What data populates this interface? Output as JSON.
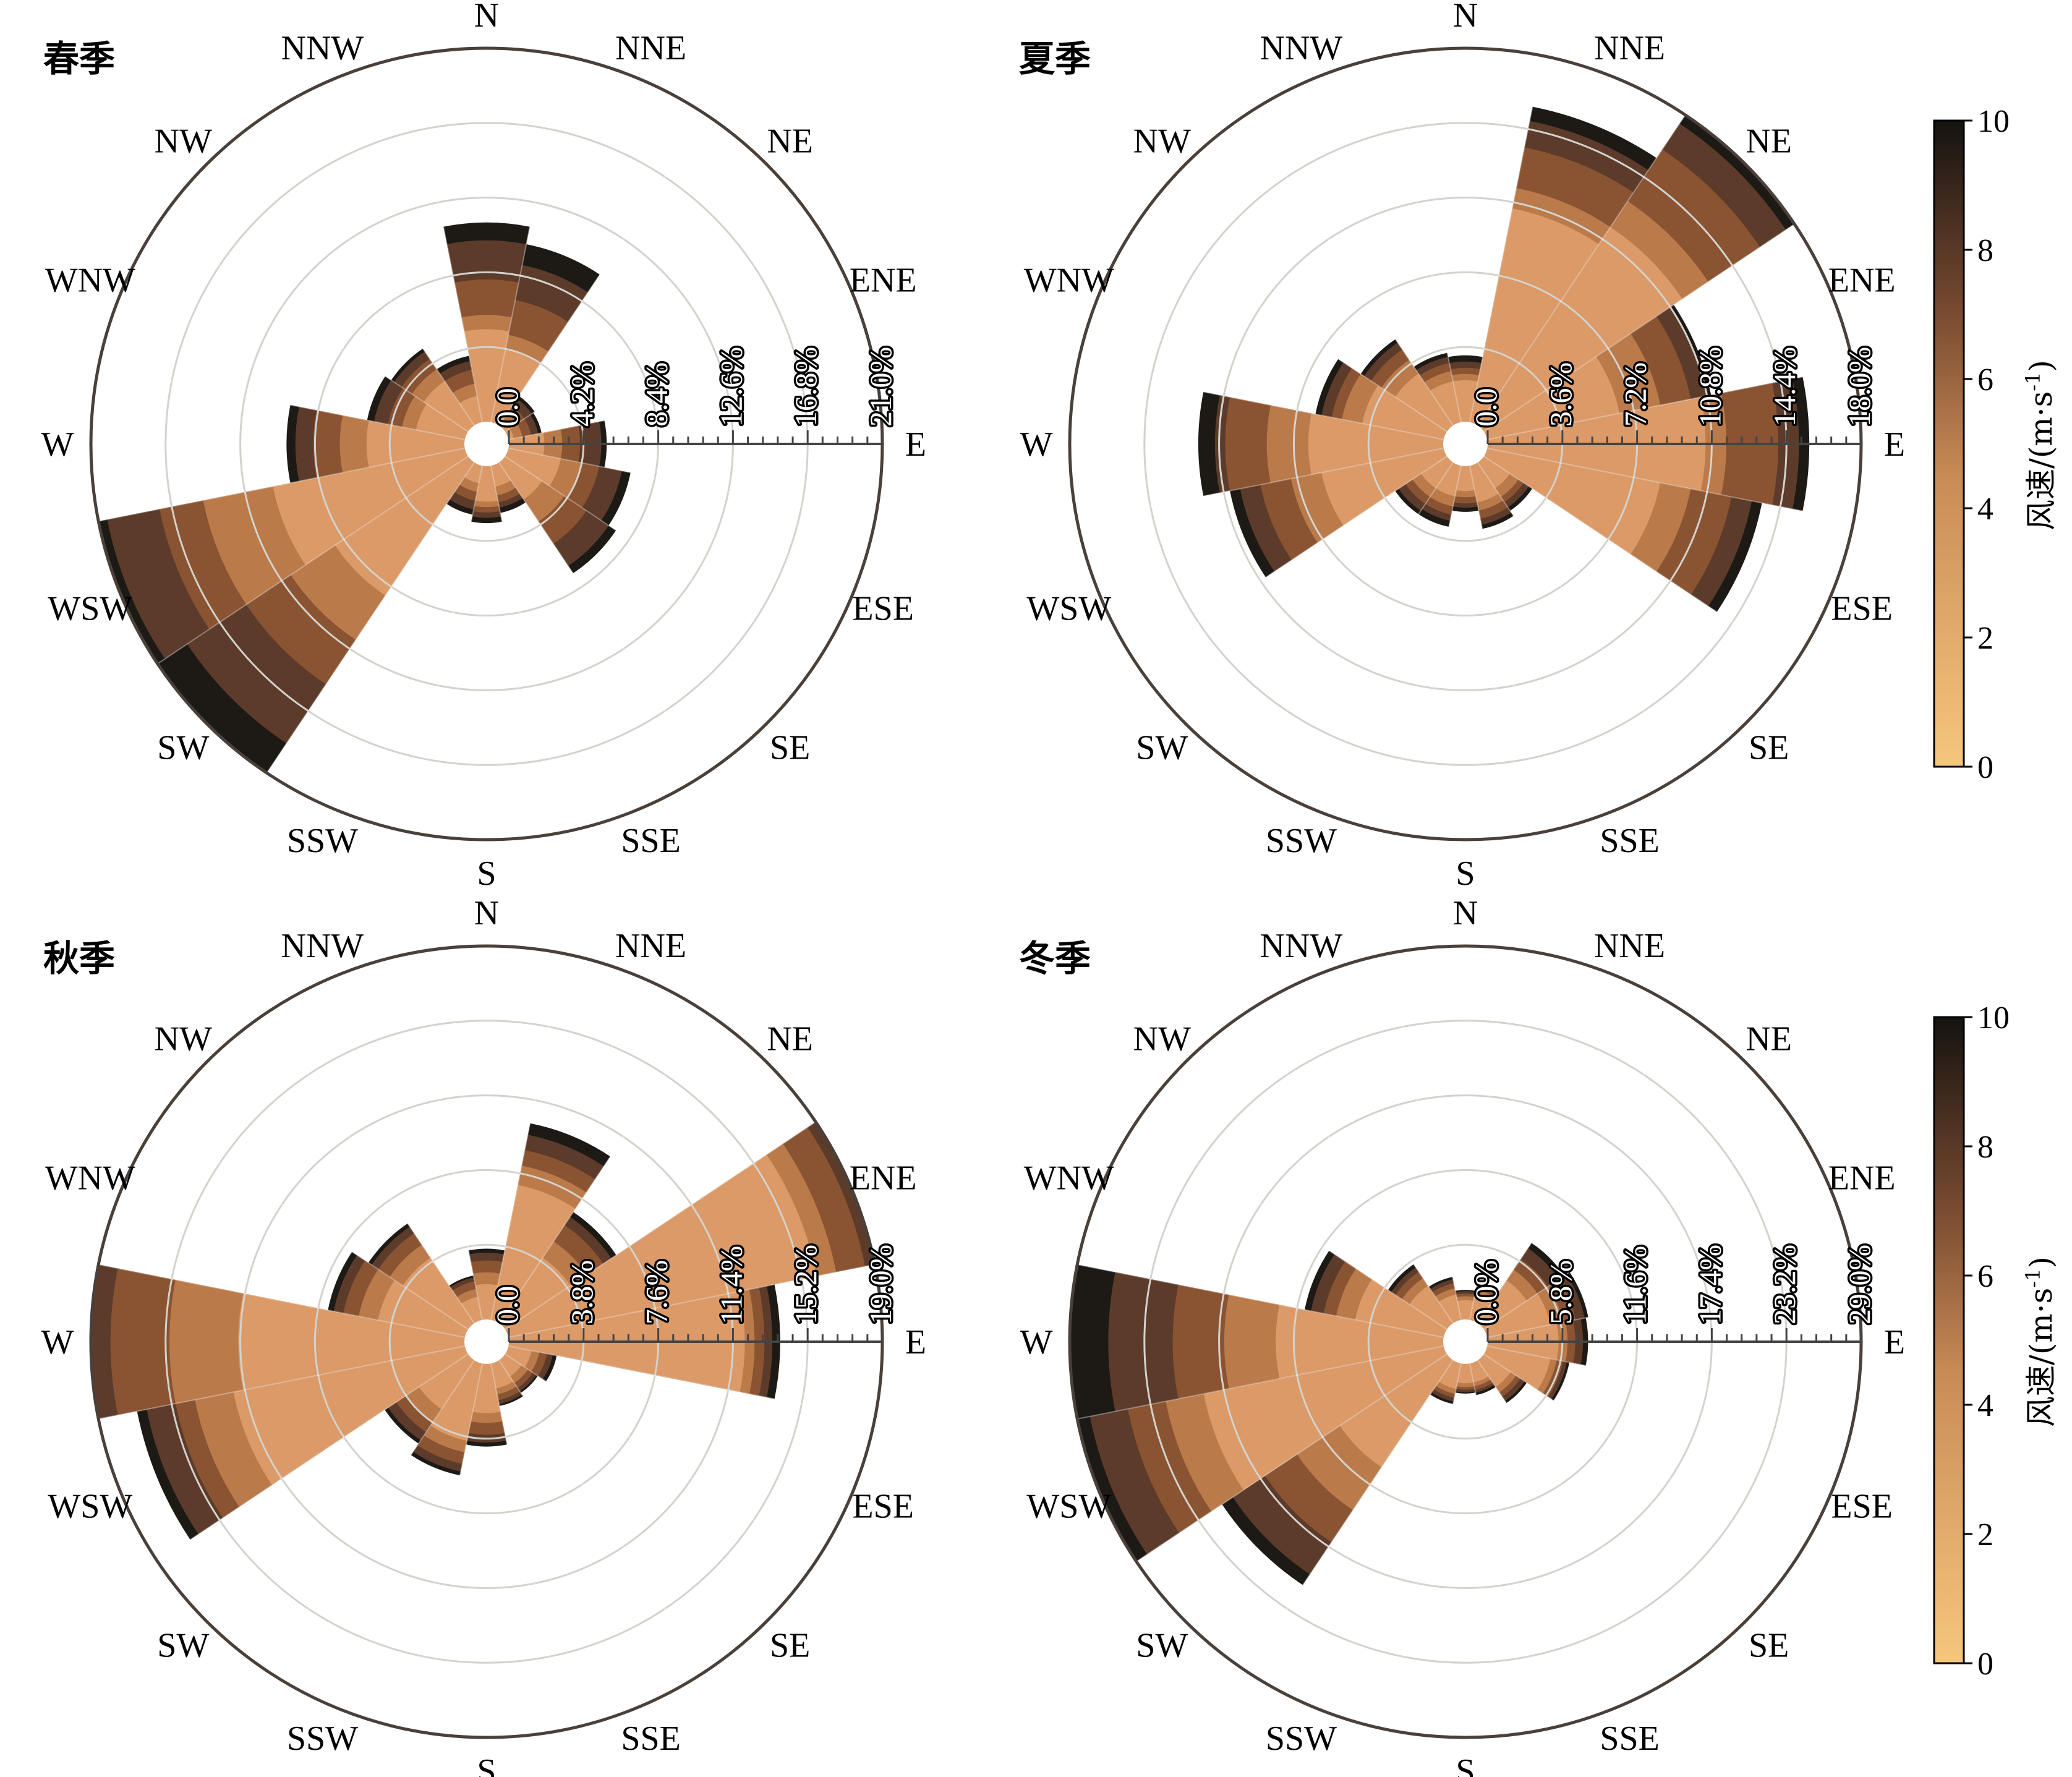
{
  "chart_data": [
    {
      "type": "wind-rose",
      "title": "春季",
      "directions": [
        "N",
        "NNE",
        "NE",
        "ENE",
        "E",
        "ESE",
        "SE",
        "SSE",
        "S",
        "SSW",
        "SW",
        "WSW",
        "W",
        "WNW",
        "NW",
        "NNW"
      ],
      "radial_ticks": [
        "0.0",
        "4.2%",
        "8.4%",
        "12.6%",
        "16.8%",
        "21.0%"
      ],
      "rmax": 21.0,
      "speed_bins": [
        2,
        4,
        6,
        8,
        10
      ],
      "cumulative_frequency": [
        [
          5.2,
          6.0,
          8.0,
          10.2,
          11.2
        ],
        [
          4.2,
          5.0,
          7.0,
          9.0,
          10.2
        ],
        [
          0.3,
          0.8,
          1.3,
          1.8,
          2.0
        ],
        [
          0.3,
          0.8,
          1.3,
          1.7,
          1.9
        ],
        [
          2.0,
          3.0,
          4.0,
          5.2,
          5.5
        ],
        [
          3.0,
          4.2,
          5.2,
          6.5,
          7.0
        ],
        [
          2.5,
          4.0,
          5.5,
          7.0,
          7.5
        ],
        [
          1.2,
          1.7,
          2.1,
          2.4,
          2.7
        ],
        [
          2.0,
          2.3,
          2.6,
          2.9,
          3.2
        ],
        [
          1.0,
          1.5,
          2.0,
          2.5,
          2.8
        ],
        [
          9.0,
          12.0,
          15.0,
          19.0,
          21.0
        ],
        [
          11.0,
          15.0,
          17.5,
          20.5,
          21.5
        ],
        [
          5.5,
          7.0,
          8.5,
          9.5,
          10.0
        ],
        [
          2.8,
          3.6,
          4.4,
          5.2,
          5.6
        ],
        [
          3.0,
          3.8,
          4.5,
          5.0,
          5.2
        ],
        [
          1.5,
          2.2,
          3.0,
          3.5,
          3.8
        ]
      ]
    },
    {
      "type": "wind-rose",
      "title": "夏季",
      "directions": [
        "N",
        "NNE",
        "NE",
        "ENE",
        "E",
        "ESE",
        "SE",
        "SSE",
        "S",
        "SSW",
        "SW",
        "WSW",
        "W",
        "WNW",
        "NW",
        "NNW"
      ],
      "radial_ticks": [
        "0.0",
        "3.6%",
        "7.2%",
        "10.8%",
        "14.4%",
        "18.0%"
      ],
      "rmax": 18.0,
      "speed_bins": [
        2,
        4,
        6,
        8,
        10
      ],
      "cumulative_frequency": [
        [
          2.0,
          2.3,
          2.6,
          2.9,
          3.2
        ],
        [
          10.5,
          11.5,
          13.5,
          14.8,
          15.5
        ],
        [
          11.5,
          13.0,
          16.0,
          17.5,
          18.5
        ],
        [
          6.5,
          8.5,
          10.0,
          10.8,
          11.0
        ],
        [
          10.5,
          11.5,
          14.0,
          15.0,
          15.5
        ],
        [
          8.5,
          10.0,
          12.0,
          13.0,
          13.5
        ],
        [
          1.5,
          2.0,
          2.3,
          2.6,
          2.8
        ],
        [
          1.8,
          2.2,
          2.6,
          2.9,
          3.1
        ],
        [
          1.2,
          1.5,
          1.8,
          2.0,
          2.2
        ],
        [
          1.5,
          2.0,
          2.4,
          2.7,
          3.0
        ],
        [
          1.5,
          2.0,
          2.4,
          2.8,
          3.0
        ],
        [
          6.0,
          7.5,
          9.0,
          10.0,
          10.5
        ],
        [
          6.5,
          8.5,
          10.5,
          11.0,
          11.8
        ],
        [
          4.0,
          5.0,
          5.5,
          6.0,
          6.3
        ],
        [
          3.0,
          3.8,
          4.4,
          4.8,
          5.0
        ],
        [
          2.0,
          2.5,
          2.9,
          3.2,
          3.4
        ]
      ]
    },
    {
      "type": "wind-rose",
      "title": "秋季",
      "directions": [
        "N",
        "NNE",
        "NE",
        "ENE",
        "E",
        "ESE",
        "SE",
        "SSE",
        "S",
        "SSW",
        "SW",
        "WSW",
        "W",
        "WNW",
        "NW",
        "NNW"
      ],
      "radial_ticks": [
        "0.0",
        "3.8%",
        "7.6%",
        "11.4%",
        "15.2%",
        "19.0%"
      ],
      "rmax": 19.0,
      "speed_bins": [
        2,
        4,
        6,
        8,
        10
      ],
      "cumulative_frequency": [
        [
          1.8,
          2.4,
          3.0,
          3.4,
          3.6
        ],
        [
          7.0,
          8.0,
          8.8,
          9.6,
          10.2
        ],
        [
          4.0,
          5.0,
          6.0,
          6.5,
          6.8
        ],
        [
          16.0,
          17.0,
          18.5,
          19.5,
          20.0
        ],
        [
          12.0,
          12.5,
          13.0,
          13.4,
          13.8
        ],
        [
          1.2,
          1.6,
          2.0,
          2.3,
          2.5
        ],
        [
          1.0,
          1.4,
          1.7,
          1.9,
          2.0
        ],
        [
          1.3,
          1.6,
          1.9,
          2.1,
          2.2
        ],
        [
          2.5,
          3.0,
          3.6,
          4.0,
          4.2
        ],
        [
          4.0,
          4.6,
          5.2,
          5.6,
          5.8
        ],
        [
          3.0,
          3.8,
          4.4,
          4.9,
          5.1
        ],
        [
          12.0,
          14.0,
          15.0,
          16.5,
          17.0
        ],
        [
          11.5,
          15.0,
          18.0,
          20.0,
          21.0
        ],
        [
          4.5,
          5.5,
          6.3,
          6.8,
          7.1
        ],
        [
          4.0,
          4.8,
          5.5,
          5.9,
          6.1
        ],
        [
          1.2,
          1.6,
          2.0,
          2.2,
          2.3
        ]
      ]
    },
    {
      "type": "wind-rose",
      "title": "冬季",
      "directions": [
        "N",
        "NNE",
        "NE",
        "ENE",
        "E",
        "ESE",
        "SE",
        "SSE",
        "S",
        "SSW",
        "SW",
        "WSW",
        "W",
        "WNW",
        "NW",
        "NNW"
      ],
      "radial_ticks": [
        "0.0%",
        "5.8%",
        "11.6%",
        "17.4%",
        "23.2%",
        "29.0%"
      ],
      "rmax": 29.0,
      "speed_bins": [
        2,
        4,
        6,
        8,
        10
      ],
      "cumulative_frequency": [
        [
          1.5,
          1.8,
          2.0,
          2.2,
          2.3
        ],
        [
          2.0,
          2.4,
          2.7,
          2.9,
          3.0
        ],
        [
          4.0,
          5.0,
          6.0,
          7.0,
          7.5
        ],
        [
          5.0,
          6.0,
          7.0,
          7.7,
          8.0
        ],
        [
          5.5,
          6.2,
          6.8,
          7.4,
          7.8
        ],
        [
          5.0,
          5.5,
          6.0,
          6.3,
          6.5
        ],
        [
          2.5,
          3.0,
          3.4,
          3.8,
          4.0
        ],
        [
          1.5,
          1.8,
          2.1,
          2.3,
          2.5
        ],
        [
          1.5,
          1.8,
          2.0,
          2.2,
          2.3
        ],
        [
          2.0,
          2.4,
          2.7,
          3.0,
          3.2
        ],
        [
          10.0,
          14.0,
          17.0,
          20.0,
          21.0
        ],
        [
          19.0,
          22.0,
          25.0,
          28.0,
          30.0
        ],
        [
          13.0,
          17.0,
          21.0,
          26.0,
          30.0
        ],
        [
          7.0,
          8.5,
          9.5,
          10.5,
          11.0
        ],
        [
          3.5,
          4.2,
          4.8,
          5.2,
          5.5
        ],
        [
          2.0,
          2.5,
          2.9,
          3.2,
          3.4
        ]
      ]
    }
  ],
  "colorbar": {
    "label": "风速/(m·s-1)",
    "label_main": "风速/(m·s",
    "label_sup": "-1",
    "label_end": ")",
    "ticks": [
      "0",
      "2",
      "4",
      "6",
      "8",
      "10"
    ],
    "range": [
      0,
      10
    ]
  },
  "colors": {
    "speed_bins": [
      "#db9a67",
      "#ba7a4a",
      "#8a5432",
      "#5c3b2b",
      "#1d1a16"
    ],
    "colormap_low": "#f6c67d",
    "colormap_mid": "#b47343",
    "colormap_high": "#171512",
    "grid": "#d4d2cc",
    "outer_ring": "#4a403a"
  }
}
